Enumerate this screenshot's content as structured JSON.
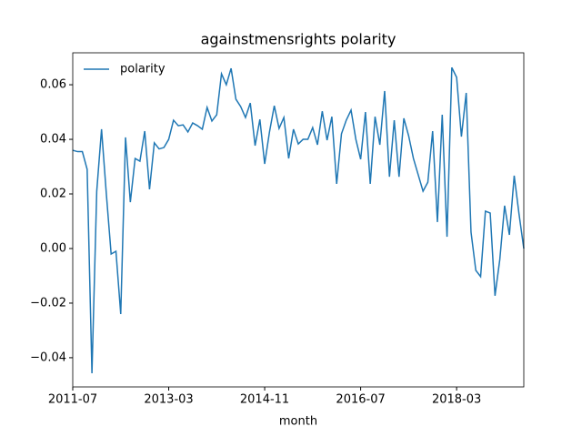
{
  "chart_data": {
    "type": "line",
    "title": "againstmensrights polarity",
    "xlabel": "month",
    "x": [
      "2011-07",
      "2011-08",
      "2011-09",
      "2011-10",
      "2011-11",
      "2011-12",
      "2012-01",
      "2012-02",
      "2012-03",
      "2012-04",
      "2012-05",
      "2012-06",
      "2012-07",
      "2012-08",
      "2012-09",
      "2012-10",
      "2012-11",
      "2012-12",
      "2013-01",
      "2013-02",
      "2013-03",
      "2013-04",
      "2013-05",
      "2013-06",
      "2013-07",
      "2013-08",
      "2013-09",
      "2013-10",
      "2013-11",
      "2013-12",
      "2014-01",
      "2014-02",
      "2014-03",
      "2014-04",
      "2014-05",
      "2014-06",
      "2014-07",
      "2014-08",
      "2014-09",
      "2014-10",
      "2014-11",
      "2014-12",
      "2015-01",
      "2015-02",
      "2015-03",
      "2015-04",
      "2015-05",
      "2015-06",
      "2015-07",
      "2015-08",
      "2015-09",
      "2015-10",
      "2015-11",
      "2015-12",
      "2016-01",
      "2016-02",
      "2016-03",
      "2016-04",
      "2016-05",
      "2016-06",
      "2016-07",
      "2016-08",
      "2016-09",
      "2016-10",
      "2016-11",
      "2016-12",
      "2017-01",
      "2017-02",
      "2017-03",
      "2017-04",
      "2017-05",
      "2017-06",
      "2017-07",
      "2017-08",
      "2017-09",
      "2017-10",
      "2017-11",
      "2017-12",
      "2018-01",
      "2018-02",
      "2018-03",
      "2018-04",
      "2018-05",
      "2018-06",
      "2018-07",
      "2018-08",
      "2018-09",
      "2018-10",
      "2018-11",
      "2018-12",
      "2019-01",
      "2019-02",
      "2019-03",
      "2019-04",
      "2019-05"
    ],
    "series": [
      {
        "name": "polarity",
        "color": "#1f77b4",
        "values": [
          0.036,
          0.0355,
          0.0355,
          0.029,
          -0.0457,
          0.021,
          0.0437,
          0.02,
          -0.002,
          -0.001,
          -0.024,
          0.0407,
          0.017,
          0.033,
          0.032,
          0.043,
          0.0217,
          0.0387,
          0.0365,
          0.037,
          0.04,
          0.047,
          0.045,
          0.0453,
          0.0427,
          0.046,
          0.045,
          0.0437,
          0.0517,
          0.0467,
          0.049,
          0.064,
          0.06,
          0.066,
          0.0547,
          0.052,
          0.048,
          0.0533,
          0.0377,
          0.0473,
          0.031,
          0.0427,
          0.0523,
          0.044,
          0.048,
          0.033,
          0.0437,
          0.0383,
          0.04,
          0.04,
          0.0443,
          0.038,
          0.0503,
          0.0397,
          0.0483,
          0.0237,
          0.042,
          0.047,
          0.0507,
          0.04,
          0.0327,
          0.05,
          0.0237,
          0.0483,
          0.038,
          0.0577,
          0.0263,
          0.047,
          0.0263,
          0.0477,
          0.0413,
          0.033,
          0.027,
          0.021,
          0.0243,
          0.043,
          0.0097,
          0.049,
          0.0043,
          0.0663,
          0.0627,
          0.041,
          0.057,
          0.006,
          -0.008,
          -0.0103,
          0.0137,
          0.013,
          -0.0173,
          -0.004,
          0.0157,
          0.005,
          0.0267,
          0.0127,
          0.0
        ]
      }
    ],
    "xlim": [
      "2011-07",
      "2019-05"
    ],
    "xticks": [
      "2011-07",
      "2013-03",
      "2014-11",
      "2016-07",
      "2018-03"
    ],
    "ylim": [
      -0.0507,
      0.0717
    ],
    "yticks": [
      {
        "value": -0.04,
        "label": "−0.04"
      },
      {
        "value": -0.02,
        "label": "−0.02"
      },
      {
        "value": 0,
        "label": "0.00"
      },
      {
        "value": 0.02,
        "label": "0.02"
      },
      {
        "value": 0.04,
        "label": "0.04"
      },
      {
        "value": 0.06,
        "label": "0.06"
      }
    ],
    "legend": "upper left"
  }
}
